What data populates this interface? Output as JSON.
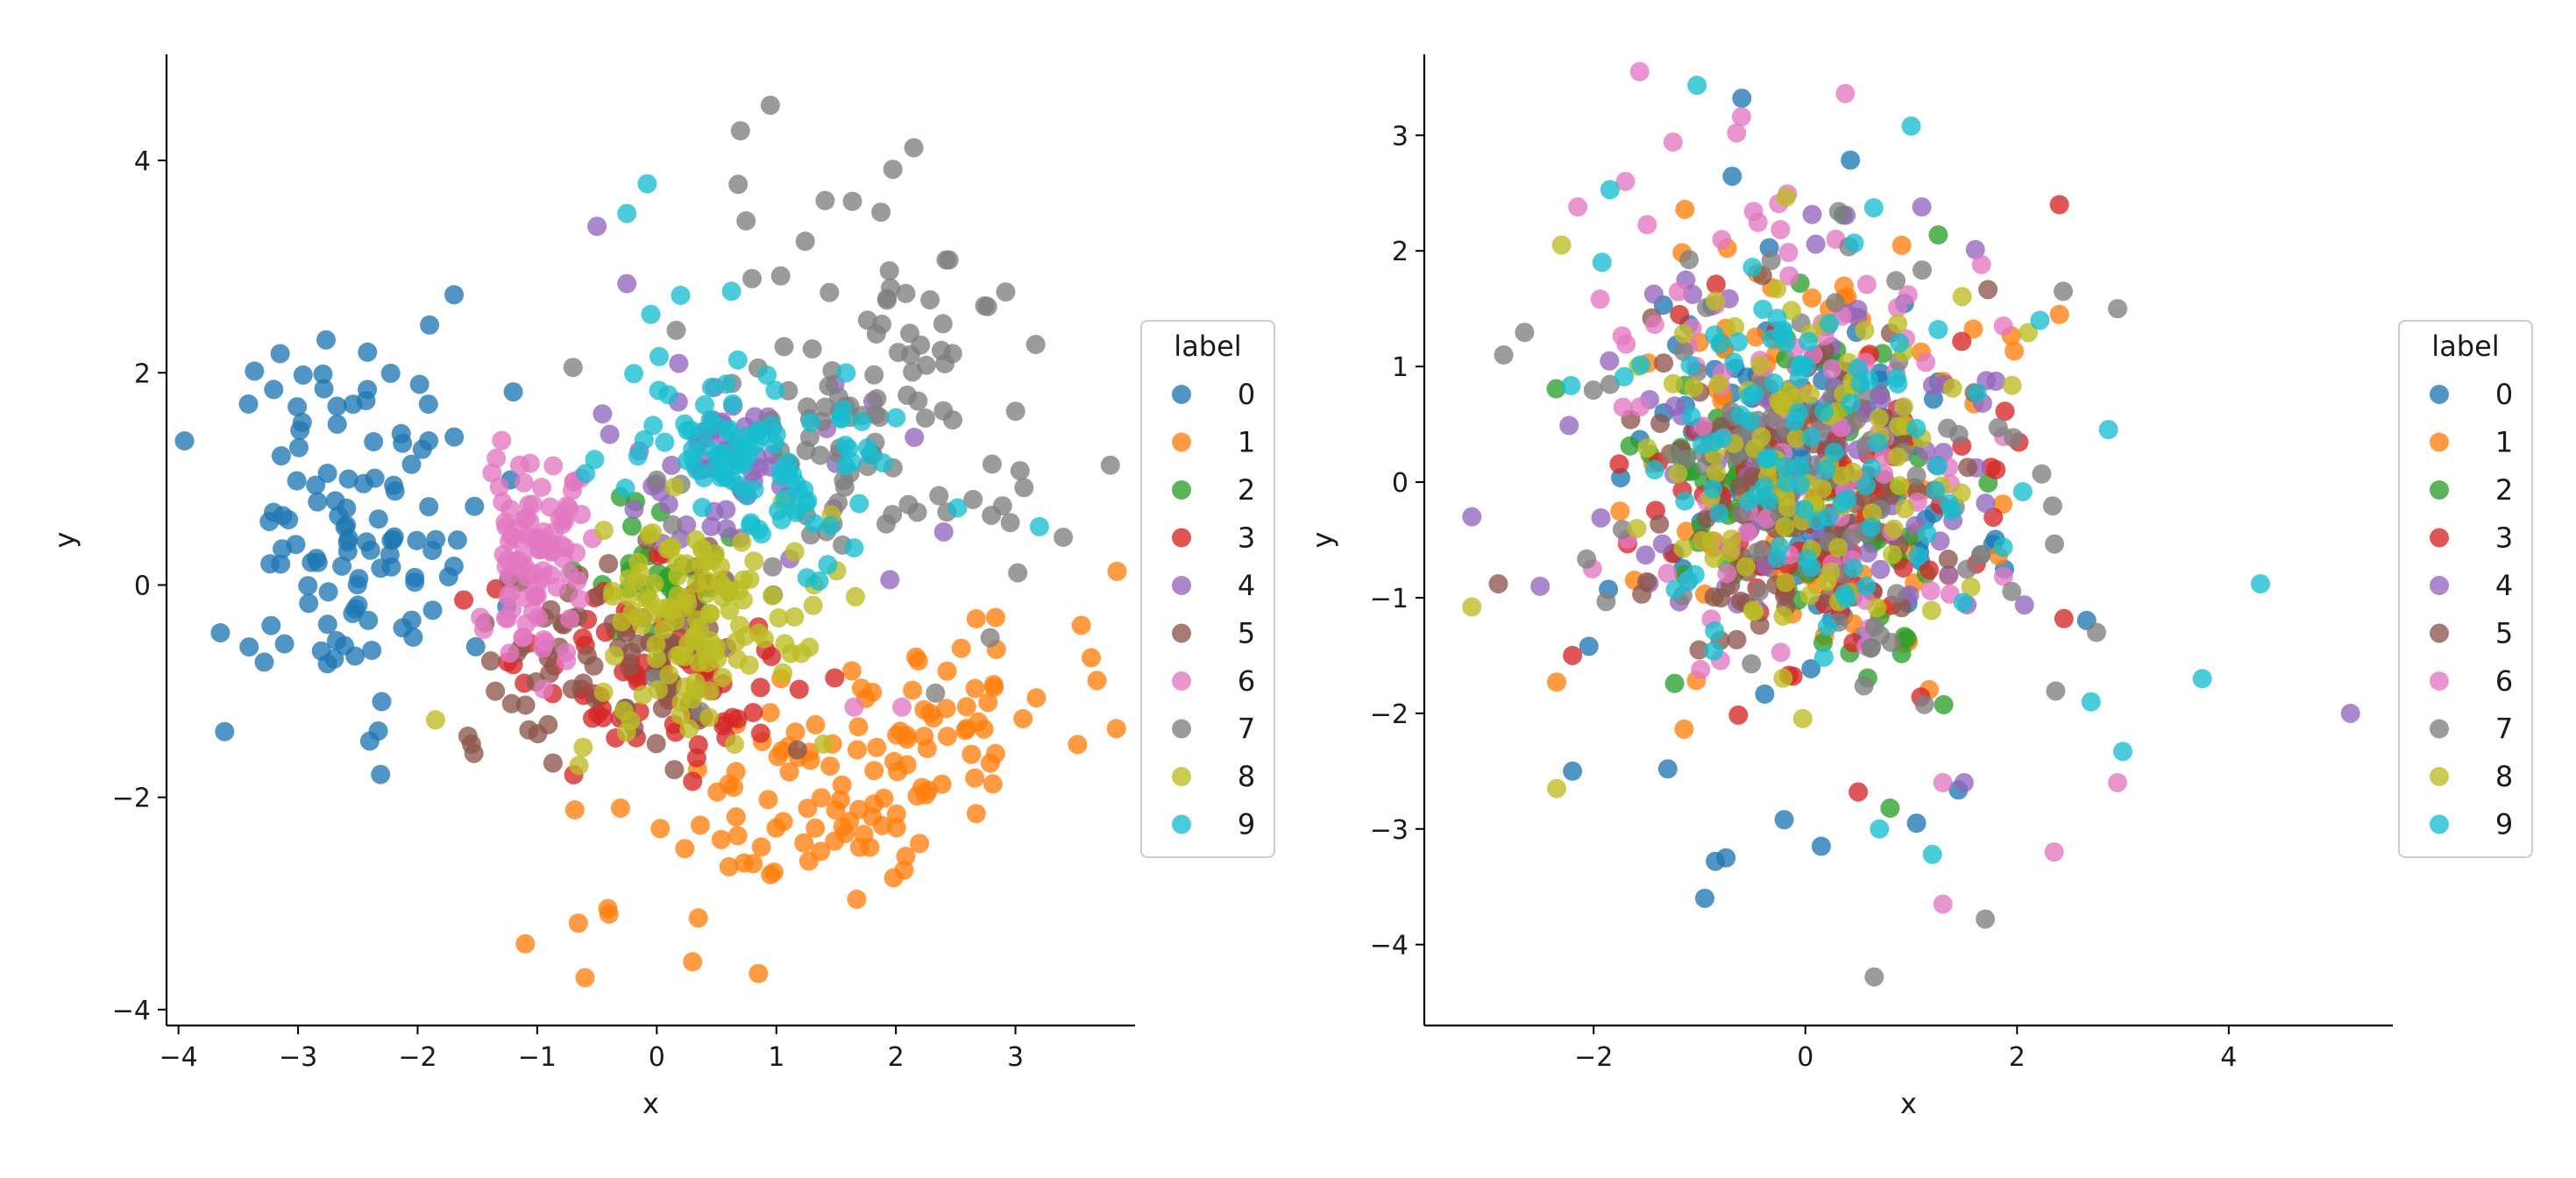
{
  "figure": {
    "description_title": ""
  },
  "palette": [
    "#1f77b4",
    "#ff7f0e",
    "#2ca02c",
    "#d62728",
    "#9467bd",
    "#8c564b",
    "#e377c2",
    "#7f7f7f",
    "#bcbd22",
    "#17becf"
  ],
  "chart_data": [
    {
      "type": "scatter",
      "title": "",
      "xlabel": "x",
      "ylabel": "y",
      "xlim": [
        -4.1,
        4.0
      ],
      "ylim": [
        -4.15,
        5.0
      ],
      "xticks": [
        -4,
        -3,
        -2,
        -1,
        0,
        1,
        2,
        3
      ],
      "yticks": [
        -4,
        -2,
        0,
        2,
        4
      ],
      "legend": {
        "title": "label",
        "position": "right",
        "labels": [
          "0",
          "1",
          "2",
          "3",
          "4",
          "5",
          "6",
          "7",
          "8",
          "9"
        ]
      },
      "clusters": [
        {
          "label": "0",
          "n": 110,
          "cx": -2.55,
          "cy": 0.55,
          "sx": 0.55,
          "sy": 0.9,
          "rho": 0.0,
          "extra": [
            [
              -3.65,
              -0.45
            ],
            [
              -3.15,
              2.18
            ],
            [
              -1.9,
              2.45
            ],
            [
              -2.4,
              -1.47
            ],
            [
              -1.2,
              1.82
            ]
          ]
        },
        {
          "label": "1",
          "n": 125,
          "cx": 1.65,
          "cy": -1.75,
          "sx": 0.95,
          "sy": 0.65,
          "rho": 0.65,
          "extra": [
            [
              -1.1,
              -3.38
            ],
            [
              -0.6,
              -3.7
            ],
            [
              0.85,
              -3.66
            ],
            [
              3.55,
              -0.38
            ],
            [
              0.3,
              -3.55
            ],
            [
              -0.4,
              -3.1
            ]
          ]
        },
        {
          "label": "2",
          "n": 35,
          "cx": 0.0,
          "cy": 0.0,
          "sx": 0.28,
          "sy": 0.3,
          "rho": 0.0,
          "extra": []
        },
        {
          "label": "3",
          "n": 75,
          "cx": -0.05,
          "cy": -0.9,
          "sx": 0.6,
          "sy": 0.45,
          "rho": 0.0,
          "extra": [
            [
              0.3,
              -1.85
            ],
            [
              -1.2,
              -0.75
            ]
          ]
        },
        {
          "label": "4",
          "n": 65,
          "cx": 0.55,
          "cy": 1.15,
          "sx": 0.55,
          "sy": 0.45,
          "rho": 0.0,
          "extra": [
            [
              -0.5,
              3.38
            ],
            [
              -0.25,
              2.84
            ],
            [
              2.4,
              0.5
            ],
            [
              1.95,
              0.05
            ]
          ]
        },
        {
          "label": "5",
          "n": 80,
          "cx": -0.25,
          "cy": -0.65,
          "sx": 0.6,
          "sy": 0.45,
          "rho": 0.0,
          "extra": [
            [
              -1.55,
              -1.5
            ],
            [
              -1.35,
              -1.0
            ]
          ]
        },
        {
          "label": "6",
          "n": 95,
          "cx": -1.05,
          "cy": 0.35,
          "sx": 0.22,
          "sy": 0.55,
          "rho": 0.0,
          "extra": [
            [
              1.65,
              -1.15
            ],
            [
              2.05,
              -1.15
            ]
          ]
        },
        {
          "label": "7",
          "n": 110,
          "cx": 1.8,
          "cy": 1.6,
          "sx": 0.8,
          "sy": 1.0,
          "rho": 0.25,
          "extra": [
            [
              0.95,
              4.52
            ],
            [
              0.7,
              4.28
            ],
            [
              2.15,
              4.12
            ],
            [
              3.4,
              0.45
            ],
            [
              -0.7,
              2.05
            ]
          ]
        },
        {
          "label": "8",
          "n": 120,
          "cx": 0.35,
          "cy": -0.35,
          "sx": 0.45,
          "sy": 0.5,
          "rho": 0.0,
          "extra": [
            [
              -1.85,
              -1.27
            ],
            [
              -0.65,
              -1.7
            ],
            [
              0.65,
              -1.5
            ]
          ]
        },
        {
          "label": "9",
          "n": 105,
          "cx": 0.75,
          "cy": 1.25,
          "sx": 0.55,
          "sy": 0.5,
          "rho": -0.3,
          "extra": [
            [
              -0.08,
              3.78
            ],
            [
              -0.25,
              3.5
            ],
            [
              -0.05,
              2.55
            ],
            [
              1.65,
              0.35
            ],
            [
              3.2,
              0.55
            ]
          ]
        }
      ]
    },
    {
      "type": "scatter",
      "title": "",
      "xlabel": "x",
      "ylabel": "y",
      "xlim": [
        -3.6,
        5.55
      ],
      "ylim": [
        -4.7,
        3.7
      ],
      "xticks": [
        -2,
        0,
        2,
        4
      ],
      "yticks": [
        -4,
        -3,
        -2,
        -1,
        0,
        1,
        2,
        3
      ],
      "legend": {
        "title": "label",
        "position": "right",
        "labels": [
          "0",
          "1",
          "2",
          "3",
          "4",
          "5",
          "6",
          "7",
          "8",
          "9"
        ]
      },
      "clusters": [
        {
          "label": "0",
          "n": 95,
          "cx": 0.0,
          "cy": 0.1,
          "sx": 0.85,
          "sy": 0.95,
          "rho": 0.0,
          "extra": [
            [
              -0.6,
              3.32
            ],
            [
              -0.95,
              -3.6
            ],
            [
              -0.75,
              -3.25
            ],
            [
              -0.85,
              -3.28
            ],
            [
              0.15,
              -3.15
            ],
            [
              -0.2,
              -2.92
            ],
            [
              1.05,
              -2.95
            ],
            [
              -1.3,
              -2.48
            ],
            [
              -2.2,
              -2.5
            ]
          ]
        },
        {
          "label": "1",
          "n": 105,
          "cx": 0.05,
          "cy": 0.15,
          "sx": 0.9,
          "sy": 0.9,
          "rho": 0.0,
          "extra": [
            [
              2.4,
              1.45
            ],
            [
              -2.35,
              -1.73
            ]
          ]
        },
        {
          "label": "2",
          "n": 85,
          "cx": 0.0,
          "cy": -0.1,
          "sx": 0.75,
          "sy": 0.85,
          "rho": 0.0,
          "extra": [
            [
              0.8,
              -2.82
            ]
          ]
        },
        {
          "label": "3",
          "n": 95,
          "cx": 0.2,
          "cy": -0.2,
          "sx": 0.85,
          "sy": 0.8,
          "rho": 0.0,
          "extra": [
            [
              2.4,
              2.4
            ],
            [
              0.5,
              -2.68
            ],
            [
              -2.2,
              -1.5
            ]
          ]
        },
        {
          "label": "4",
          "n": 95,
          "cx": 0.1,
          "cy": 0.2,
          "sx": 0.95,
          "sy": 0.85,
          "rho": 0.0,
          "extra": [
            [
              5.15,
              -2.0
            ],
            [
              -3.15,
              -0.3
            ],
            [
              1.5,
              -2.6
            ],
            [
              1.1,
              2.38
            ]
          ]
        },
        {
          "label": "5",
          "n": 95,
          "cx": -0.05,
          "cy": -0.15,
          "sx": 0.9,
          "sy": 0.8,
          "rho": 0.0,
          "extra": [
            [
              -2.9,
              -0.88
            ]
          ]
        },
        {
          "label": "6",
          "n": 95,
          "cx": 0.0,
          "cy": 0.6,
          "sx": 1.0,
          "sy": 1.0,
          "rho": 0.0,
          "extra": [
            [
              -0.65,
              3.02
            ],
            [
              -2.15,
              2.38
            ],
            [
              1.3,
              -3.65
            ],
            [
              2.35,
              -3.2
            ],
            [
              2.95,
              -2.6
            ],
            [
              1.3,
              -2.6
            ],
            [
              -1.7,
              2.6
            ]
          ]
        },
        {
          "label": "7",
          "n": 95,
          "cx": 0.0,
          "cy": 0.0,
          "sx": 1.0,
          "sy": 1.0,
          "rho": 0.0,
          "extra": [
            [
              0.65,
              -4.28
            ],
            [
              1.7,
              -3.78
            ],
            [
              2.95,
              1.5
            ],
            [
              -2.85,
              1.1
            ],
            [
              2.75,
              -1.3
            ]
          ]
        },
        {
          "label": "8",
          "n": 100,
          "cx": 0.0,
          "cy": 0.25,
          "sx": 0.85,
          "sy": 0.8,
          "rho": 0.0,
          "extra": [
            [
              -3.15,
              -1.08
            ],
            [
              -2.35,
              -2.65
            ]
          ]
        },
        {
          "label": "9",
          "n": 100,
          "cx": 0.05,
          "cy": 0.3,
          "sx": 0.9,
          "sy": 0.9,
          "rho": 0.0,
          "extra": [
            [
              1.0,
              3.08
            ],
            [
              4.3,
              -0.88
            ],
            [
              3.75,
              -1.7
            ],
            [
              3.0,
              -2.33
            ],
            [
              2.7,
              -1.9
            ],
            [
              0.7,
              -3.0
            ],
            [
              1.2,
              -3.22
            ]
          ]
        }
      ]
    }
  ]
}
